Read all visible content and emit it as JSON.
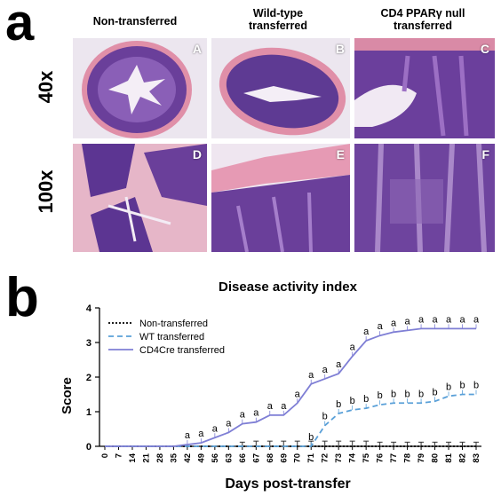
{
  "figure": {
    "panel_a_letter": "a",
    "panel_b_letter": "b",
    "columns": [
      {
        "line1": "Non-transferred",
        "line2": ""
      },
      {
        "line1": "Wild-type",
        "line2": "transferred"
      },
      {
        "line1": "CD4 PPARγ null",
        "line2": "transferred"
      }
    ],
    "rows": [
      "40x",
      "100x"
    ],
    "tiles": [
      "A",
      "B",
      "C",
      "D",
      "E",
      "F"
    ]
  },
  "chart_data": {
    "type": "line",
    "title": "Disease activity index",
    "xlabel": "Days post-transfer",
    "ylabel": "Score",
    "ylim": [
      0,
      4
    ],
    "yticks": [
      "0",
      "1",
      "2",
      "3",
      "4"
    ],
    "x": [
      "0",
      "7",
      "14",
      "21",
      "28",
      "35",
      "42",
      "49",
      "56",
      "63",
      "66",
      "67",
      "68",
      "69",
      "70",
      "71",
      "72",
      "73",
      "74",
      "75",
      "76",
      "77",
      "78",
      "79",
      "80",
      "81",
      "82",
      "83"
    ],
    "legend_position": "top-left",
    "series": [
      {
        "name": "Non-transferred",
        "color": "#000000",
        "dash": "dotted",
        "values": [
          0,
          0,
          0,
          0,
          0,
          0,
          0,
          0,
          0,
          0,
          0,
          0,
          0,
          0,
          0,
          0,
          0,
          0,
          0,
          0,
          0,
          0,
          0,
          0,
          0,
          0,
          0,
          0
        ],
        "error": [
          0,
          0,
          0,
          0,
          0,
          0,
          0,
          0,
          0,
          0,
          0.12,
          0.15,
          0.15,
          0.15,
          0.15,
          0.15,
          0.15,
          0.15,
          0.15,
          0.15,
          0.12,
          0.12,
          0.12,
          0.12,
          0.12,
          0.12,
          0.12,
          0.12
        ]
      },
      {
        "name": "WT transferred",
        "color": "#5aa0d8",
        "dash": "dashed",
        "values": [
          0,
          0,
          0,
          0,
          0,
          0,
          0,
          0,
          0,
          0,
          0,
          0,
          0,
          0,
          0,
          0,
          0.6,
          0.95,
          1.05,
          1.1,
          1.2,
          1.25,
          1.25,
          1.25,
          1.3,
          1.45,
          1.5,
          1.5
        ],
        "labels": [
          "",
          "",
          "",
          "",
          "",
          "",
          "",
          "",
          "",
          "",
          "",
          "",
          "",
          "",
          "",
          "b",
          "b",
          "b",
          "b",
          "b",
          "b",
          "b",
          "b",
          "b",
          "b",
          "b",
          "b",
          "b"
        ]
      },
      {
        "name": "CD4Cre transferred",
        "color": "#7f7fd5",
        "dash": "solid",
        "values": [
          0,
          0,
          0,
          0,
          0,
          0,
          0.05,
          0.1,
          0.25,
          0.4,
          0.65,
          0.7,
          0.9,
          0.9,
          1.25,
          1.8,
          1.95,
          2.1,
          2.6,
          3.05,
          3.2,
          3.3,
          3.35,
          3.4,
          3.4,
          3.4,
          3.4,
          3.4
        ],
        "labels": [
          "",
          "",
          "",
          "",
          "",
          "",
          "a",
          "a",
          "a",
          "a",
          "a",
          "a",
          "a",
          "a",
          "a",
          "a",
          "a",
          "a",
          "a",
          "a",
          "a",
          "a",
          "a",
          "a",
          "a",
          "a",
          "a",
          "a"
        ]
      }
    ]
  }
}
